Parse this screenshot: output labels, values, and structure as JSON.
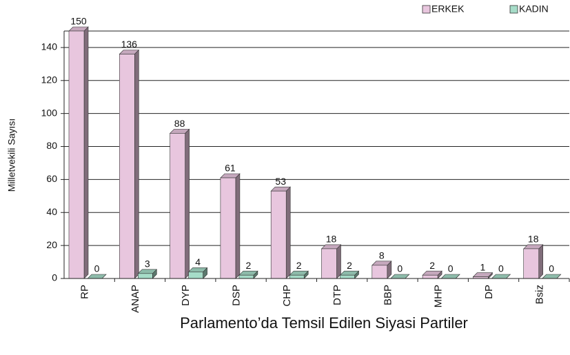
{
  "chart_data": {
    "type": "bar",
    "x_label": "Parlamento’da Temsil Edilen Siyasi Partiler",
    "y_label": "Milletvekili Sayısı",
    "categories": [
      "RP",
      "ANAP",
      "DYP",
      "DSP",
      "CHP",
      "DTP",
      "BBP",
      "MHP",
      "DP",
      "Bsiz"
    ],
    "series": [
      {
        "name": "ERKEK",
        "color": "#e8c6de",
        "values": [
          150,
          136,
          88,
          61,
          53,
          18,
          8,
          2,
          1,
          18
        ]
      },
      {
        "name": "KADIN",
        "color": "#a6dcc8",
        "values": [
          0,
          3,
          4,
          2,
          2,
          2,
          0,
          0,
          0,
          0
        ]
      }
    ],
    "ylim": [
      0,
      150
    ],
    "yticks": [
      0,
      20,
      40,
      60,
      80,
      100,
      120,
      140
    ],
    "grid": true,
    "legend": "top-right"
  }
}
